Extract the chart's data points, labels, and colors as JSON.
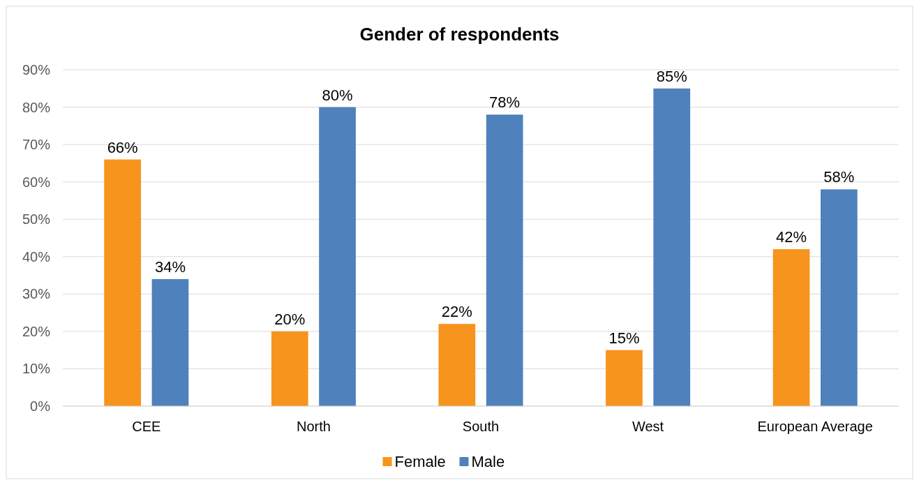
{
  "chart_data": {
    "type": "bar",
    "title": "Gender of respondents",
    "categories": [
      "CEE",
      "North",
      "South",
      "West",
      "European Average"
    ],
    "series": [
      {
        "name": "Female",
        "color": "#f7941d",
        "values": [
          66,
          20,
          22,
          15,
          42
        ],
        "value_labels": [
          "66%",
          "20%",
          "22%",
          "15%",
          "42%"
        ]
      },
      {
        "name": "Male",
        "color": "#4f81bd",
        "values": [
          34,
          80,
          78,
          85,
          58
        ],
        "value_labels": [
          "34%",
          "80%",
          "78%",
          "85%",
          "58%"
        ]
      }
    ],
    "ylim": [
      0,
      90
    ],
    "yticks": [
      {
        "value": 0,
        "label": "0%"
      },
      {
        "value": 10,
        "label": "10%"
      },
      {
        "value": 20,
        "label": "20%"
      },
      {
        "value": 30,
        "label": "30%"
      },
      {
        "value": 40,
        "label": "40%"
      },
      {
        "value": 50,
        "label": "50%"
      },
      {
        "value": 60,
        "label": "60%"
      },
      {
        "value": 70,
        "label": "70%"
      },
      {
        "value": 80,
        "label": "80%"
      },
      {
        "value": 90,
        "label": "90%"
      }
    ],
    "grid": "y",
    "legend": "bottom"
  }
}
